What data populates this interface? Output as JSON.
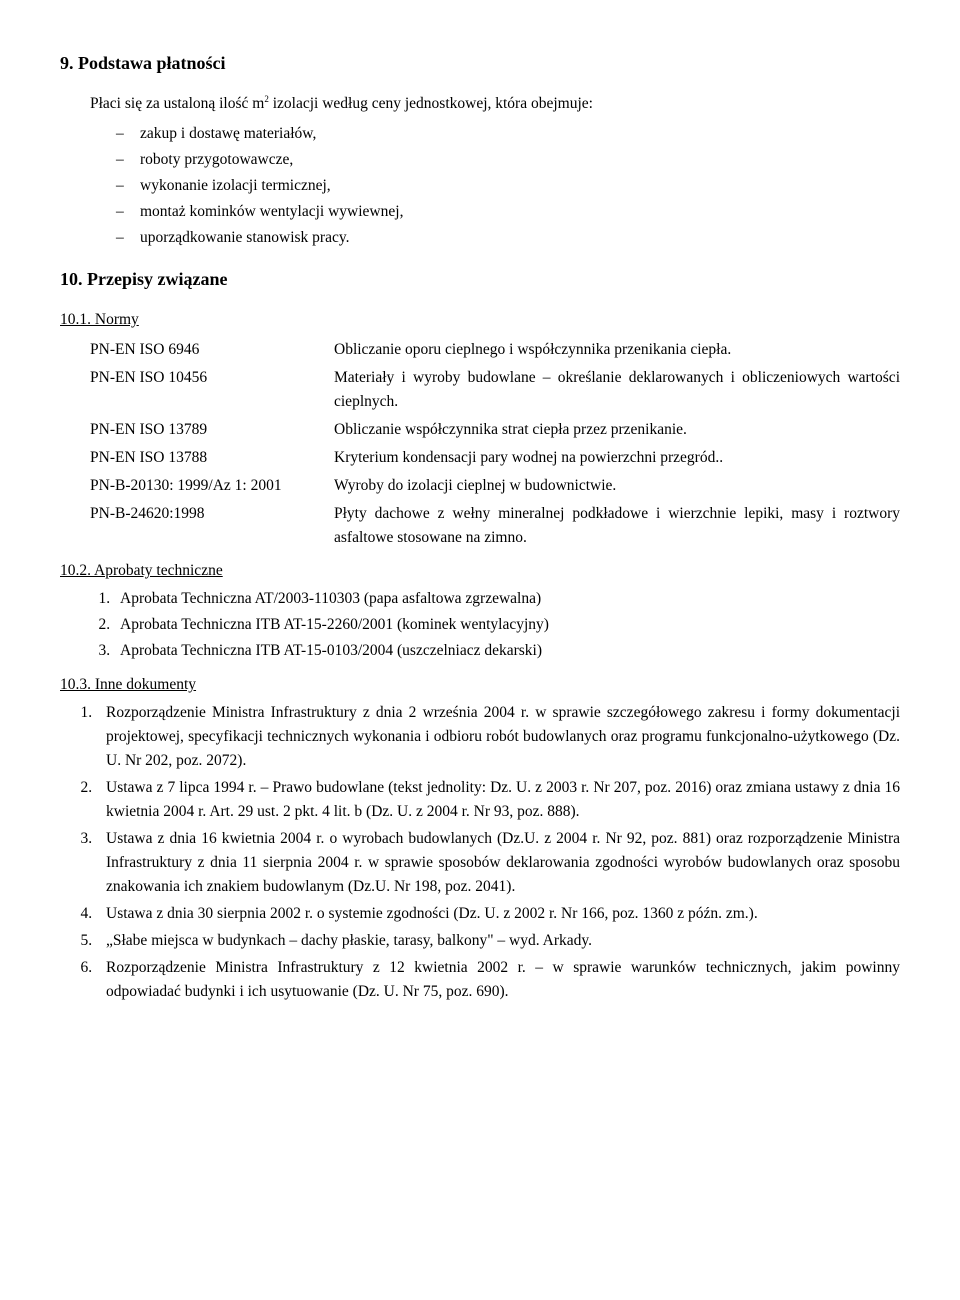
{
  "section9": {
    "heading": "9. Podstawa płatności",
    "intro_pre": "Płaci się za ustaloną ilość m",
    "intro_sup": "2",
    "intro_post": " izolacji według ceny jednostkowej, która obejmuje:",
    "items": [
      "zakup i dostawę materiałów,",
      "roboty przygotowawcze,",
      "wykonanie izolacji termicznej,",
      "montaż kominków wentylacji wywiewnej,",
      "uporządkowanie stanowisk pracy."
    ]
  },
  "section10": {
    "heading": "10. Przepisy związane",
    "sub1": {
      "heading": "10.1. Normy",
      "rows": [
        {
          "code": "PN-EN ISO 6946",
          "desc": "Obliczanie oporu cieplnego i współczynnika przenikania ciepła."
        },
        {
          "code": "PN-EN ISO 10456",
          "desc": "Materiały i wyroby budowlane – określanie deklarowanych i obliczeniowych wartości cieplnych."
        },
        {
          "code": "PN-EN ISO 13789",
          "desc": "Obliczanie współczynnika strat ciepła przez przenikanie."
        },
        {
          "code": "PN-EN ISO 13788",
          "desc": "Kryterium kondensacji pary wodnej na powierzchni przegród.."
        },
        {
          "code": "PN-B-20130: 1999/Az 1: 2001",
          "desc": "Wyroby do izolacji cieplnej w budownictwie."
        },
        {
          "code": "PN-B-24620:1998",
          "desc": "Płyty dachowe z wełny mineralnej podkładowe i wierzchnie lepiki, masy i roztwory asfaltowe stosowane na zimno."
        }
      ]
    },
    "sub2": {
      "heading": "10.2. Aprobaty techniczne",
      "items": [
        "Aprobata Techniczna AT/2003-110303 (papa asfaltowa zgrzewalna)",
        "Aprobata Techniczna ITB AT-15-2260/2001 (kominek wentylacyjny)",
        "Aprobata Techniczna ITB AT-15-0103/2004 (uszczelniacz dekarski)"
      ]
    },
    "sub3": {
      "heading": "10.3. Inne dokumenty",
      "items": [
        "Rozporządzenie Ministra Infrastruktury z dnia 2 września 2004 r. w sprawie szczegółowego zakresu i formy dokumentacji projektowej, specyfikacji technicznych wykonania i odbioru robót budowlanych oraz programu funkcjonalno-użytkowego (Dz. U. Nr 202, poz. 2072).",
        "Ustawa z 7 lipca 1994 r. – Prawo budowlane (tekst jednolity: Dz. U. z 2003 r. Nr 207, poz. 2016) oraz zmiana ustawy z dnia 16 kwietnia 2004 r. Art. 29 ust. 2 pkt. 4 lit. b (Dz. U. z 2004 r. Nr 93, poz. 888).",
        "Ustawa z dnia 16 kwietnia 2004 r. o wyrobach budowlanych (Dz.U. z 2004 r. Nr 92, poz. 881) oraz rozporządzenie Ministra Infrastruktury z dnia 11 sierpnia 2004 r. w sprawie sposobów deklarowania zgodności wyrobów budowlanych oraz sposobu znakowania ich znakiem budowlanym (Dz.U. Nr 198, poz. 2041).",
        "Ustawa z dnia 30 sierpnia 2002 r. o systemie zgodności (Dz. U. z 2002 r. Nr 166, poz. 1360 z późn. zm.).",
        "„Słabe miejsca w budynkach – dachy płaskie, tarasy, balkony\" – wyd. Arkady.",
        "Rozporządzenie Ministra Infrastruktury z 12 kwietnia 2002 r. – w sprawie warunków technicznych, jakim powinny odpowiadać budynki i ich usytuowanie (Dz. U. Nr 75, poz. 690)."
      ]
    }
  },
  "colors": {
    "text": "#000000",
    "background": "#ffffff"
  },
  "typography": {
    "body_fontsize": 15.5,
    "heading_fontsize": 18,
    "font_family": "Times New Roman"
  }
}
